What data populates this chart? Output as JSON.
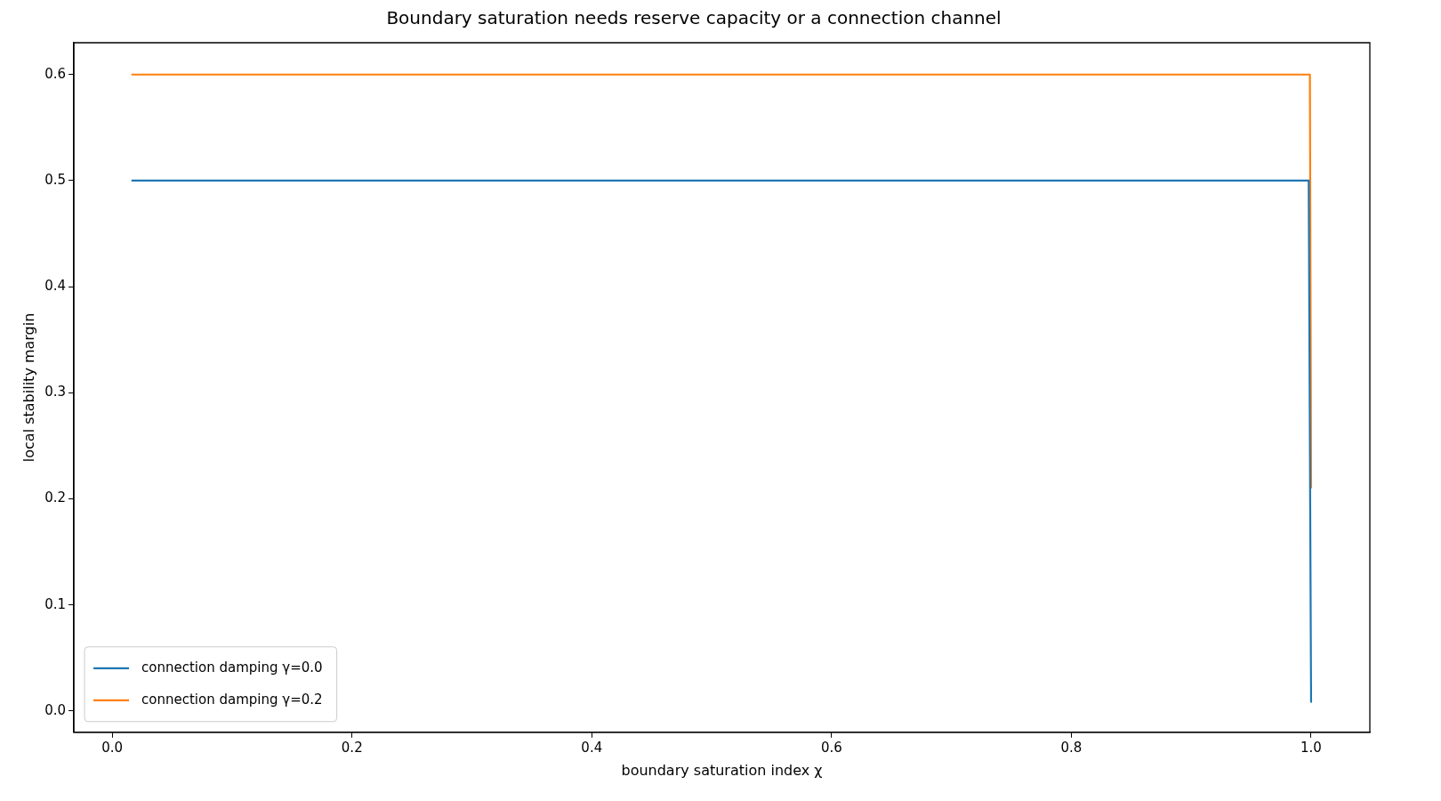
{
  "chart_data": {
    "type": "line",
    "title": "Boundary saturation needs reserve capacity or a connection channel",
    "xlabel": "boundary saturation index χ",
    "ylabel": "local stability margin",
    "series": [
      {
        "name": "connection damping γ=0.0",
        "color": "#1f77b4",
        "x": [
          0.016,
          0.998,
          1.0
        ],
        "values": [
          0.5,
          0.5,
          0.008
        ]
      },
      {
        "name": "connection damping γ=0.2",
        "color": "#ff7f0e",
        "x": [
          0.016,
          0.999,
          1.0
        ],
        "values": [
          0.6,
          0.6,
          0.21
        ]
      }
    ],
    "xlim": [
      -0.032,
      1.049
    ],
    "xticks": [
      {
        "value": 0,
        "label": "0.0"
      },
      0.2,
      0.4,
      0.6,
      0.8,
      {
        "value": 1,
        "label": "1.0"
      }
    ],
    "ylim": [
      -0.02,
      0.63
    ],
    "yticks": [
      {
        "value": 0,
        "label": "0.0"
      },
      0.1,
      0.2,
      0.3,
      0.4,
      0.5,
      0.6
    ],
    "legend": "bottom left",
    "grid": false,
    "marker": "none",
    "line_style": "solid"
  }
}
